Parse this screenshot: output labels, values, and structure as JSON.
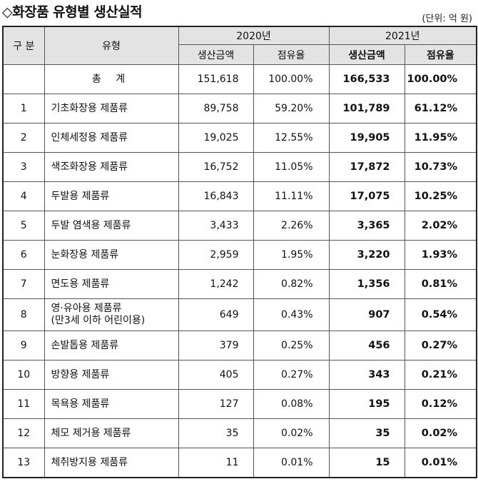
{
  "title": "◇화장품 유형별 생산실적",
  "unit": "(단위: 억 원)",
  "headers": {
    "category": "구 분",
    "type": "유형",
    "year_2020": "2020년",
    "year_2021": "2021년",
    "amount": "생산금액",
    "share": "점유율"
  },
  "total": {
    "label": "총 계",
    "amount_2020": "151,618",
    "share_2020": "100.00%",
    "amount_2021": "166,533",
    "share_2021": "100.00%"
  },
  "rows": [
    {
      "no": "1",
      "name": "기초화장용  제품류",
      "name2": "",
      "amount_2020": "89,758",
      "share_2020": "59.20%",
      "amount_2021": "101,789",
      "share_2021": "61.12%"
    },
    {
      "no": "2",
      "name": "인체세정용  제품류",
      "name2": "",
      "amount_2020": "19,025",
      "share_2020": "12.55%",
      "amount_2021": "19,905",
      "share_2021": "11.95%"
    },
    {
      "no": "3",
      "name": "색조화장용 제품류",
      "name2": "",
      "amount_2020": "16,752",
      "share_2020": "11.05%",
      "amount_2021": "17,872",
      "share_2021": "10.73%"
    },
    {
      "no": "4",
      "name": "두발용 제품류",
      "name2": "",
      "amount_2020": "16,843",
      "share_2020": "11.11%",
      "amount_2021": "17,075",
      "share_2021": "10.25%"
    },
    {
      "no": "5",
      "name": "두발 염색용 제품류",
      "name2": "",
      "amount_2020": "3,433",
      "share_2020": "2.26%",
      "amount_2021": "3,365",
      "share_2021": "2.02%"
    },
    {
      "no": "6",
      "name": "눈화장용 제품류",
      "name2": "",
      "amount_2020": "2,959",
      "share_2020": "1.95%",
      "amount_2021": "3,220",
      "share_2021": "1.93%"
    },
    {
      "no": "7",
      "name": "면도용 제품류",
      "name2": "",
      "amount_2020": "1,242",
      "share_2020": "0.82%",
      "amount_2021": "1,356",
      "share_2021": "0.81%"
    },
    {
      "no": "8",
      "name": "영·유아용 제품류",
      "name2": "(만3세 이하 어린이용)",
      "amount_2020": "649",
      "share_2020": "0.43%",
      "amount_2021": "907",
      "share_2021": "0.54%"
    },
    {
      "no": "9",
      "name": "손발톱용 제품류",
      "name2": "",
      "amount_2020": "379",
      "share_2020": "0.25%",
      "amount_2021": "456",
      "share_2021": "0.27%"
    },
    {
      "no": "10",
      "name": "방향용 제품류",
      "name2": "",
      "amount_2020": "405",
      "share_2020": "0.27%",
      "amount_2021": "343",
      "share_2021": "0.21%"
    },
    {
      "no": "11",
      "name": "목욕용 제품류",
      "name2": "",
      "amount_2020": "127",
      "share_2020": "0.08%",
      "amount_2021": "195",
      "share_2021": "0.12%"
    },
    {
      "no": "12",
      "name": "체모 제거용 제품류",
      "name2": "",
      "amount_2020": "35",
      "share_2020": "0.02%",
      "amount_2021": "35",
      "share_2021": "0.02%"
    },
    {
      "no": "13",
      "name": "체취방지용 제품류",
      "name2": "",
      "amount_2020": "11",
      "share_2020": "0.01%",
      "amount_2021": "15",
      "share_2021": "0.01%"
    }
  ]
}
